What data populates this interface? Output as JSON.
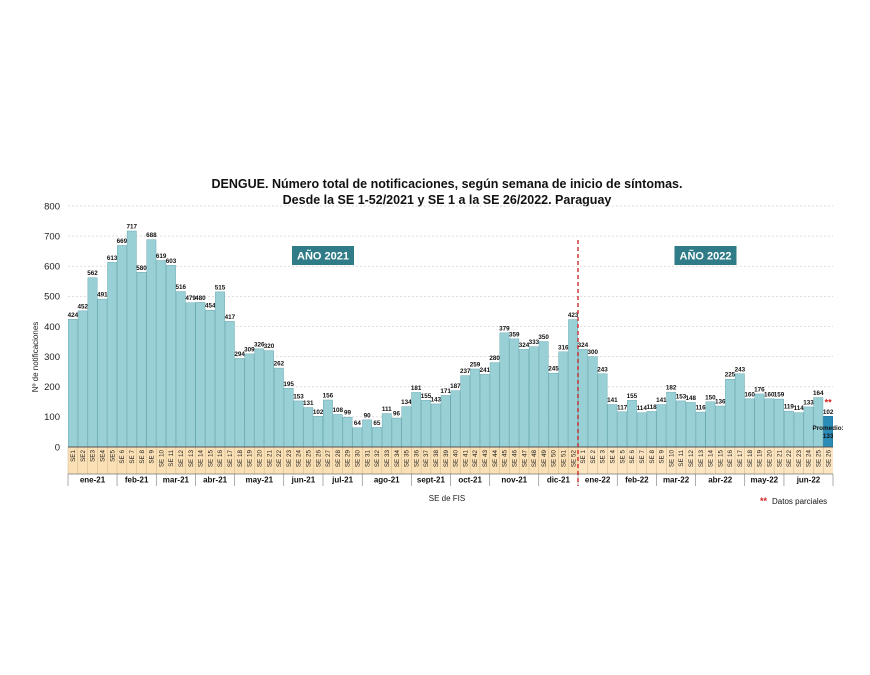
{
  "chart_data": {
    "type": "bar",
    "title_line1": "DENGUE. Número total de notificaciones, según semana de inicio de síntomas.",
    "title_line2": "Desde la SE 1-52/2021 y SE 1 a la SE 26/2022. Paraguay",
    "ylabel": "Nº de notificaciones",
    "xlabel": "SE de FIS",
    "ylim": [
      0,
      800
    ],
    "yticks": [
      0,
      100,
      200,
      300,
      400,
      500,
      600,
      700,
      800
    ],
    "categories": [
      "SE1",
      "SE2",
      "SE3",
      "SE4",
      "SE5",
      "SE 6",
      "SE 7",
      "SE 8",
      "SE 9",
      "SE 10",
      "SE 11",
      "SE 12",
      "SE 13",
      "SE 14",
      "SE 15",
      "SE 16",
      "SE 17",
      "SE 18",
      "SE 19",
      "SE 20",
      "SE 21",
      "SE 22",
      "SE 23",
      "SE 24",
      "SE 25",
      "SE 26",
      "SE 27",
      "SE 28",
      "SE 29",
      "SE 30",
      "SE 31",
      "SE 32",
      "SE 33",
      "SE 34",
      "SE 35",
      "SE 36",
      "SE 37",
      "SE 38",
      "SE 39",
      "SE 40",
      "SE 41",
      "SE 42",
      "SE 43",
      "SE 44",
      "SE 45",
      "SE 46",
      "SE 47",
      "SE 48",
      "SE 49",
      "SE 50",
      "SE 51",
      "SE 52",
      "SE 1",
      "SE 2",
      "SE 3",
      "SE 4",
      "SE 5",
      "SE 6",
      "SE 7",
      "SE 8",
      "SE 9",
      "SE 10",
      "SE 11",
      "SE 12",
      "SE 13",
      "SE 14",
      "SE 15",
      "SE 16",
      "SE 17",
      "SE 18",
      "SE 19",
      "SE 20",
      "SE 21",
      "SE 22",
      "SE 23",
      "SE 24",
      "SE 25",
      "SE 26"
    ],
    "values": [
      424,
      452,
      562,
      491,
      613,
      669,
      717,
      580,
      688,
      619,
      603,
      516,
      479,
      480,
      454,
      515,
      417,
      294,
      309,
      326,
      320,
      262,
      195,
      153,
      131,
      102,
      156,
      108,
      99,
      64,
      90,
      65,
      111,
      96,
      134,
      181,
      155,
      143,
      171,
      187,
      237,
      259,
      241,
      280,
      379,
      359,
      324,
      333,
      350,
      245,
      316,
      423,
      324,
      300,
      243,
      141,
      117,
      155,
      114,
      118,
      141,
      182,
      153,
      148,
      116,
      150,
      136,
      225,
      243,
      160,
      176,
      160,
      159,
      119,
      114,
      133,
      164,
      102
    ],
    "months": [
      {
        "label": "ene-21",
        "start": 0,
        "end": 4
      },
      {
        "label": "feb-21",
        "start": 5,
        "end": 8
      },
      {
        "label": "mar-21",
        "start": 9,
        "end": 12
      },
      {
        "label": "abr-21",
        "start": 13,
        "end": 16
      },
      {
        "label": "may-21",
        "start": 17,
        "end": 21
      },
      {
        "label": "jun-21",
        "start": 22,
        "end": 25
      },
      {
        "label": "jul-21",
        "start": 26,
        "end": 29
      },
      {
        "label": "ago-21",
        "start": 30,
        "end": 34
      },
      {
        "label": "sept-21",
        "start": 35,
        "end": 38
      },
      {
        "label": "oct-21",
        "start": 39,
        "end": 42
      },
      {
        "label": "nov-21",
        "start": 43,
        "end": 47
      },
      {
        "label": "dic-21",
        "start": 48,
        "end": 51
      },
      {
        "label": "ene-22",
        "start": 52,
        "end": 55
      },
      {
        "label": "feb-22",
        "start": 56,
        "end": 59
      },
      {
        "label": "mar-22",
        "start": 60,
        "end": 63
      },
      {
        "label": "abr-22",
        "start": 64,
        "end": 68
      },
      {
        "label": "may-22",
        "start": 69,
        "end": 72
      },
      {
        "label": "jun-22",
        "start": 73,
        "end": 77
      }
    ],
    "year_labels": [
      "AÑO 2021",
      "AÑO 2022"
    ],
    "partial_mark": "**",
    "average_label_1": "Promedio:",
    "average_value": "133",
    "legend_mark": "**",
    "legend_text": "Datos parciales"
  },
  "colors": {
    "bar": "#98d0d6",
    "bar_stroke": "#6aaab2",
    "bar_highlight": "#2b8cb8",
    "bar_highlight_stroke": "#1b6f96",
    "year_box": "#2f7b87",
    "week_bg_2021": "#fbe0b5",
    "week_bg_2022": "#fce5c0",
    "divider": "#c81e1e",
    "partial": "#d62020"
  }
}
